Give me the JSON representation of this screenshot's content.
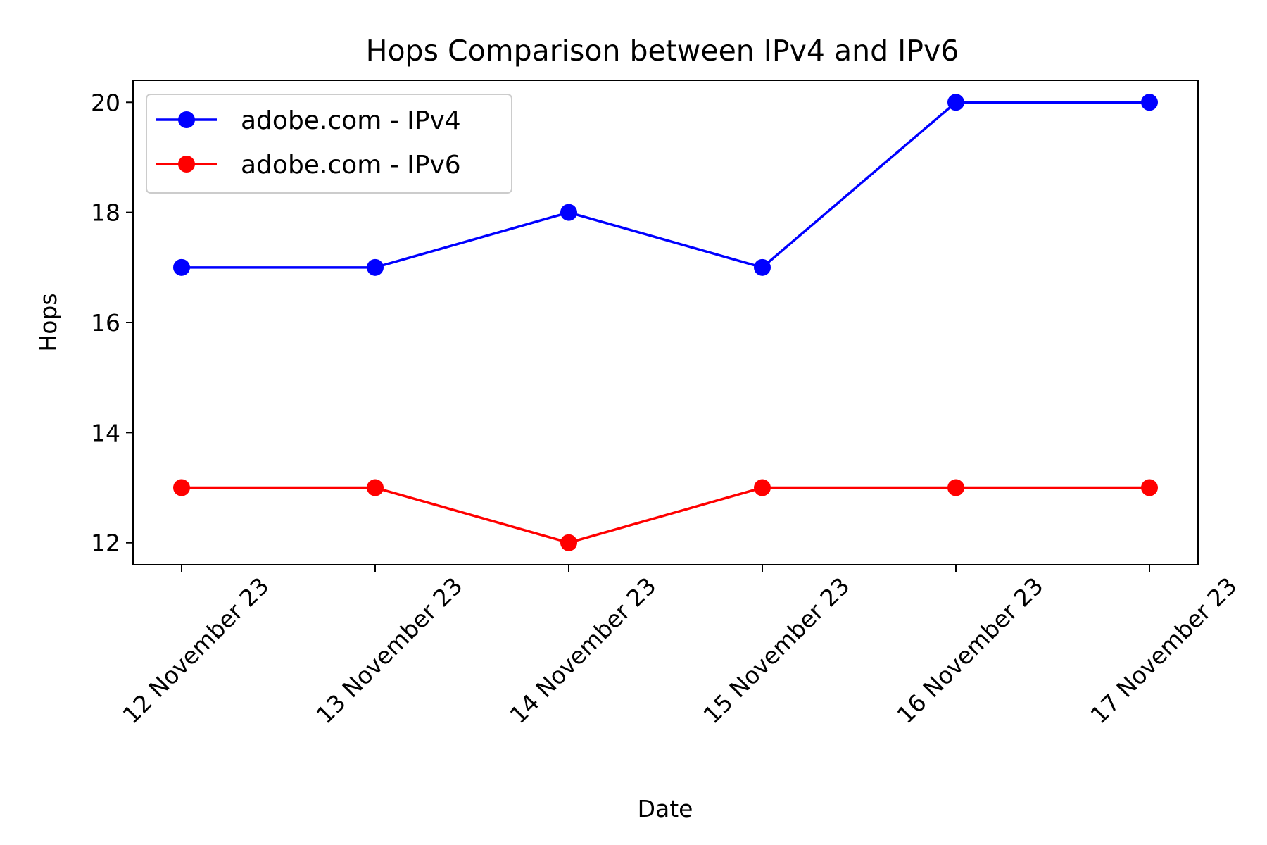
{
  "chart_data": {
    "type": "line",
    "title": "Hops Comparison between IPv4 and IPv6",
    "xlabel": "Date",
    "ylabel": "Hops",
    "categories": [
      "12 November 23",
      "13 November 23",
      "14 November 23",
      "15 November 23",
      "16 November 23",
      "17 November 23"
    ],
    "ylim": [
      11.6,
      20.4
    ],
    "yticks": [
      12,
      14,
      16,
      18,
      20
    ],
    "grid": false,
    "legend_position": "top-left",
    "series": [
      {
        "name": "adobe.com - IPv4",
        "color": "#0000ff",
        "values": [
          17,
          17,
          18,
          17,
          20,
          20
        ]
      },
      {
        "name": "adobe.com - IPv6",
        "color": "#ff0000",
        "values": [
          13,
          13,
          12,
          13,
          13,
          13
        ]
      }
    ]
  }
}
